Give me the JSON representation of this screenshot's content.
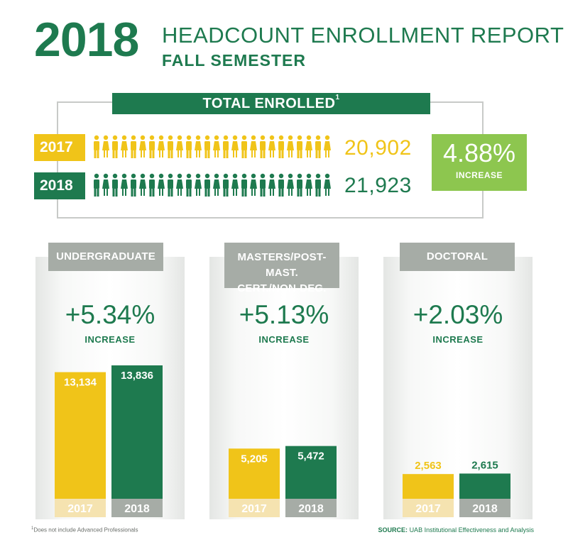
{
  "header": {
    "year": "2018",
    "title": "HEADCOUNT ENROLLMENT REPORT",
    "subtitle": "FALL SEMESTER"
  },
  "total": {
    "label": "TOTAL ENROLLED",
    "footnote_mark": "1",
    "rows": [
      {
        "year": "2017",
        "value": "20,902",
        "color": "#f0c419"
      },
      {
        "year": "2018",
        "value": "21,923",
        "color": "#1e7a4f"
      }
    ],
    "increase_pct": "4.88%",
    "increase_word": "INCREASE"
  },
  "panels": [
    {
      "head": "UNDERGRADUATE",
      "head2": "",
      "pct": "+5.34%",
      "word": "INCREASE"
    },
    {
      "head": "MASTERS/POST-MAST.",
      "head2": "CERT./NON-DEG.",
      "pct": "+5.13%",
      "word": "INCREASE"
    },
    {
      "head": "DOCTORAL",
      "head2": "",
      "pct": "+2.03%",
      "word": "INCREASE"
    }
  ],
  "footer": {
    "footnote_mark": "1",
    "footnote": "Does not include Advanced Professionals",
    "source_label": "SOURCE:",
    "source": "UAB Institutional Effectiveness and Analysis"
  },
  "colors": {
    "green": "#1e7a4f",
    "gold": "#f0c419",
    "light_green": "#8dc64f",
    "gray": "#a6aca6"
  },
  "chart_data": [
    {
      "type": "bar",
      "title": "UNDERGRADUATE",
      "categories": [
        "2017",
        "2018"
      ],
      "values": [
        13134,
        13836
      ],
      "value_labels": [
        "13,134",
        "13,836"
      ],
      "colors": [
        "#f0c419",
        "#1e7a4f"
      ]
    },
    {
      "type": "bar",
      "title": "MASTERS/POST-MAST. CERT./NON-DEG.",
      "categories": [
        "2017",
        "2018"
      ],
      "values": [
        5205,
        5472
      ],
      "value_labels": [
        "5,205",
        "5,472"
      ],
      "colors": [
        "#f0c419",
        "#1e7a4f"
      ]
    },
    {
      "type": "bar",
      "title": "DOCTORAL",
      "categories": [
        "2017",
        "2018"
      ],
      "values": [
        2563,
        2615
      ],
      "value_labels": [
        "2,563",
        "2,615"
      ],
      "colors": [
        "#f0c419",
        "#1e7a4f"
      ]
    }
  ]
}
